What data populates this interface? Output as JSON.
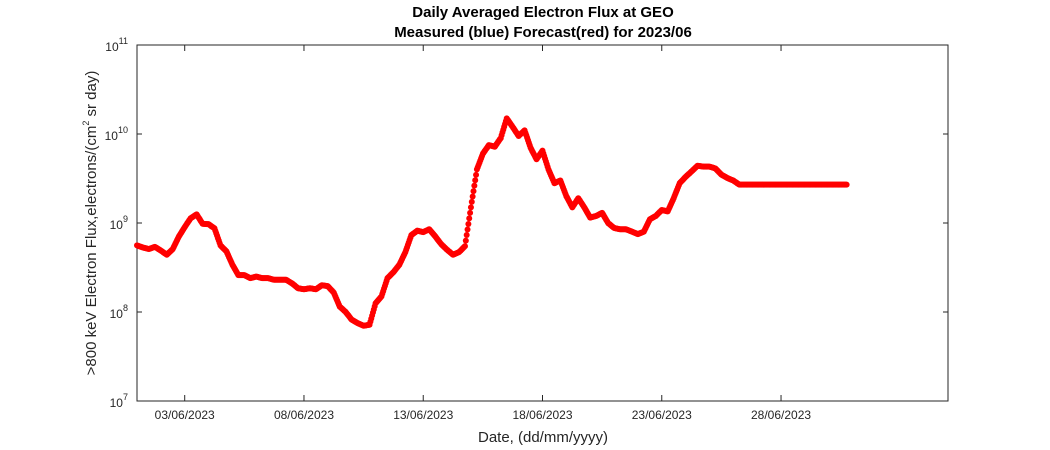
{
  "chart_data": {
    "type": "scatter",
    "title": "Daily Averaged Electron Flux at GEO",
    "subtitle": "Measured (blue) Forecast(red) for 2023/06",
    "xlabel": "Date, (dd/mm/yyyy)",
    "ylabel_main": ">800 keV Electron Flux,electrons/(cm",
    "ylabel_sup": "2",
    "ylabel_end": " sr day)",
    "y_scale": "log",
    "ylim": [
      10000000,
      100000000000
    ],
    "y_ticks": [
      {
        "value": 10000000,
        "base": "10",
        "exp": "7"
      },
      {
        "value": 100000000,
        "base": "10",
        "exp": "8"
      },
      {
        "value": 1000000000,
        "base": "10",
        "exp": "9"
      },
      {
        "value": 10000000000,
        "base": "10",
        "exp": "10"
      },
      {
        "value": 100000000000,
        "base": "10",
        "exp": "11"
      }
    ],
    "xlim": [
      "2023-06-01",
      "2023-07-05"
    ],
    "x_ticks": [
      {
        "value": "2023-06-03",
        "label": "03/06/2023"
      },
      {
        "value": "2023-06-08",
        "label": "08/06/2023"
      },
      {
        "value": "2023-06-13",
        "label": "13/06/2023"
      },
      {
        "value": "2023-06-18",
        "label": "18/06/2023"
      },
      {
        "value": "2023-06-23",
        "label": "23/06/2023"
      },
      {
        "value": "2023-06-28",
        "label": "28/06/2023"
      }
    ],
    "grid": false,
    "marker_color": "#ff0000",
    "series": [
      {
        "x": [
          "2023-06-01 00:00",
          "2023-06-01 06:00",
          "2023-06-01 12:00",
          "2023-06-01 18:00",
          "2023-06-02 00:00",
          "2023-06-02 06:00",
          "2023-06-02 12:00",
          "2023-06-02 18:00",
          "2023-06-03 00:00",
          "2023-06-03 06:00",
          "2023-06-03 12:00",
          "2023-06-03 18:00",
          "2023-06-04 00:00",
          "2023-06-04 06:00",
          "2023-06-04 12:00",
          "2023-06-04 18:00",
          "2023-06-05 00:00",
          "2023-06-05 06:00",
          "2023-06-05 12:00",
          "2023-06-05 18:00",
          "2023-06-06 00:00",
          "2023-06-06 06:00",
          "2023-06-06 12:00",
          "2023-06-06 18:00",
          "2023-06-07 00:00",
          "2023-06-07 06:00",
          "2023-06-07 12:00",
          "2023-06-07 18:00",
          "2023-06-08 00:00",
          "2023-06-08 06:00",
          "2023-06-08 12:00",
          "2023-06-08 18:00",
          "2023-06-09 00:00",
          "2023-06-09 06:00",
          "2023-06-09 12:00",
          "2023-06-09 18:00",
          "2023-06-10 00:00",
          "2023-06-10 06:00",
          "2023-06-10 12:00",
          "2023-06-10 18:00",
          "2023-06-11 00:00",
          "2023-06-11 06:00",
          "2023-06-11 12:00",
          "2023-06-11 18:00",
          "2023-06-12 00:00",
          "2023-06-12 06:00",
          "2023-06-12 12:00",
          "2023-06-12 18:00",
          "2023-06-13 00:00",
          "2023-06-13 06:00",
          "2023-06-13 12:00",
          "2023-06-13 18:00",
          "2023-06-14 00:00",
          "2023-06-14 06:00",
          "2023-06-14 12:00",
          "2023-06-14 18:00",
          "2023-06-15 00:00",
          "2023-06-15 06:00",
          "2023-06-15 12:00",
          "2023-06-15 18:00",
          "2023-06-16 00:00",
          "2023-06-16 06:00",
          "2023-06-16 12:00",
          "2023-06-16 18:00",
          "2023-06-17 00:00",
          "2023-06-17 06:00",
          "2023-06-17 12:00",
          "2023-06-17 18:00",
          "2023-06-18 00:00",
          "2023-06-18 06:00",
          "2023-06-18 12:00",
          "2023-06-18 18:00",
          "2023-06-19 00:00",
          "2023-06-19 06:00",
          "2023-06-19 12:00",
          "2023-06-19 18:00",
          "2023-06-20 00:00",
          "2023-06-20 06:00",
          "2023-06-20 12:00",
          "2023-06-20 18:00",
          "2023-06-21 00:00",
          "2023-06-21 06:00",
          "2023-06-21 12:00",
          "2023-06-21 18:00",
          "2023-06-22 00:00",
          "2023-06-22 06:00",
          "2023-06-22 12:00",
          "2023-06-22 18:00",
          "2023-06-23 00:00",
          "2023-06-23 06:00",
          "2023-06-23 12:00",
          "2023-06-23 18:00",
          "2023-06-24 00:00",
          "2023-06-24 06:00",
          "2023-06-24 12:00",
          "2023-06-24 18:00",
          "2023-06-25 00:00",
          "2023-06-25 06:00",
          "2023-06-25 12:00",
          "2023-06-25 18:00",
          "2023-06-26 00:00",
          "2023-06-26 06:00",
          "2023-06-26 12:00",
          "2023-06-26 18:00",
          "2023-06-27 00:00",
          "2023-06-27 06:00",
          "2023-06-27 12:00",
          "2023-06-27 18:00",
          "2023-06-28 00:00",
          "2023-06-28 06:00",
          "2023-06-28 12:00",
          "2023-06-28 18:00",
          "2023-06-29 00:00",
          "2023-06-29 06:00",
          "2023-06-29 12:00",
          "2023-06-29 18:00",
          "2023-06-30 00:00",
          "2023-06-30 06:00",
          "2023-06-30 12:00",
          "2023-06-30 18:00"
        ],
        "values": [
          560000000,
          530000000,
          510000000,
          540000000,
          490000000,
          440000000,
          510000000,
          700000000,
          900000000,
          1130000000,
          1250000000,
          980000000,
          970000000,
          870000000,
          560000000,
          480000000,
          340000000,
          260000000,
          260000000,
          240000000,
          250000000,
          240000000,
          240000000,
          230000000,
          230000000,
          230000000,
          210000000,
          185000000,
          180000000,
          185000000,
          180000000,
          200000000,
          195000000,
          165000000,
          115000000,
          100000000,
          82000000,
          75000000,
          70000000,
          72000000,
          125000000,
          150000000,
          240000000,
          280000000,
          340000000,
          470000000,
          730000000,
          820000000,
          790000000,
          850000000,
          710000000,
          580000000,
          500000000,
          440000000,
          470000000,
          550000000,
          1500000000,
          4000000000,
          6000000000,
          7500000000,
          7200000000,
          9000000000,
          15000000000,
          12000000000,
          9500000000,
          11000000000,
          7000000000,
          5200000000,
          6500000000,
          4000000000,
          2800000000,
          3000000000,
          2000000000,
          1500000000,
          1900000000,
          1500000000,
          1150000000,
          1200000000,
          1300000000,
          1000000000,
          880000000,
          850000000,
          850000000,
          800000000,
          750000000,
          800000000,
          1100000000,
          1200000000,
          1400000000,
          1350000000,
          1900000000,
          2800000000,
          3300000000,
          3800000000,
          4400000000,
          4300000000,
          4300000000,
          4100000000,
          3500000000,
          3200000000,
          3000000000,
          2700000000,
          2700000000,
          2700000000,
          2700000000,
          2700000000,
          2700000000,
          2700000000,
          2700000000,
          2700000000,
          2700000000,
          2700000000,
          2700000000,
          2700000000,
          2700000000,
          2700000000,
          2700000000,
          2700000000,
          2700000000,
          2700000000
        ]
      }
    ]
  }
}
